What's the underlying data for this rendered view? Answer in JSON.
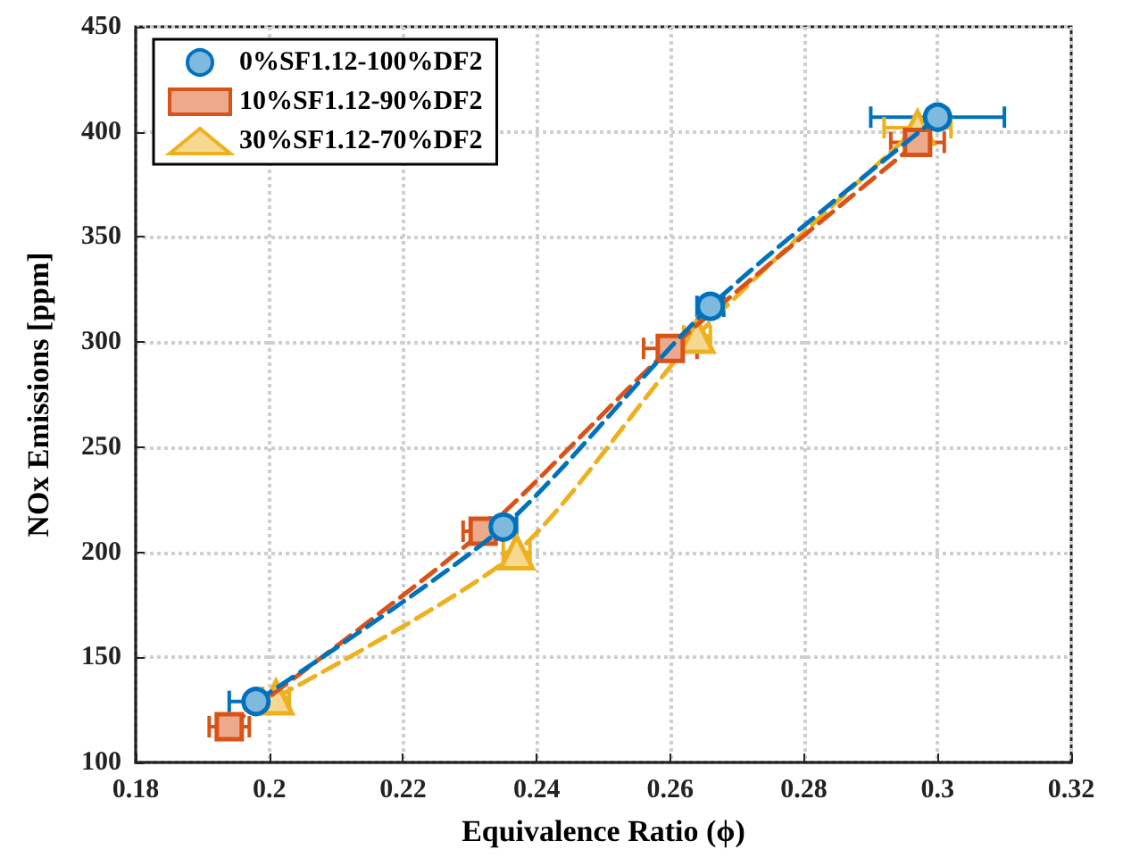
{
  "chart_data": {
    "type": "line",
    "xlabel": "Equivalence Ratio (ϕ)",
    "ylabel": "NOx Emissions [ppm]",
    "xlim": [
      0.18,
      0.32
    ],
    "xticks": [
      0.18,
      0.2,
      0.22,
      0.24,
      0.26,
      0.28,
      0.3,
      0.32
    ],
    "ylim": [
      100,
      450
    ],
    "yticks": [
      100,
      150,
      200,
      250,
      300,
      350,
      400,
      450
    ],
    "grid": true,
    "legend": "top left",
    "line_style": "dashed",
    "series": [
      {
        "name": "0%SF1.12-100%DF2",
        "color": "#0072bd",
        "marker": "circle",
        "x": [
          0.198,
          0.235,
          0.266,
          0.3
        ],
        "values": [
          129,
          212,
          317,
          407
        ],
        "xerrors": [
          0.004,
          0.002,
          0.002,
          0.01
        ]
      },
      {
        "name": "10%SF1.12-90%DF2",
        "color": "#d95319",
        "marker": "square",
        "x": [
          0.194,
          0.232,
          0.26,
          0.297
        ],
        "values": [
          117,
          210,
          297,
          395
        ],
        "xerrors": [
          0.003,
          0.003,
          0.004,
          0.004
        ]
      },
      {
        "name": "30%SF1.12-70%DF2",
        "color": "#edb120",
        "marker": "triangle",
        "x": [
          0.201,
          0.237,
          0.264,
          0.297
        ],
        "values": [
          131,
          200,
          303,
          402
        ],
        "xerrors": [
          0.002,
          0.002,
          0.002,
          0.005
        ]
      }
    ]
  }
}
